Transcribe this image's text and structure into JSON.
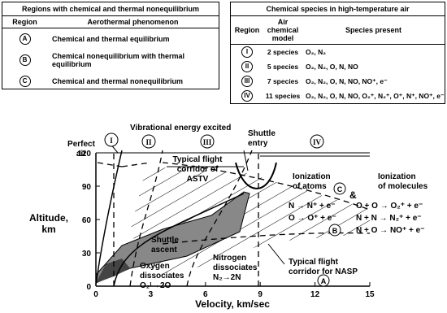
{
  "table_left": {
    "title": "Regions with chemical and thermal nonequilibrium",
    "headers": [
      "Region",
      "Aerothermal phenomenon"
    ],
    "rows": [
      [
        "A",
        "Chemical and thermal equilibrium"
      ],
      [
        "B",
        "Chemical nonequilibrium with thermal equilibrium"
      ],
      [
        "C",
        "Chemical and thermal nonequilibrium"
      ]
    ]
  },
  "table_right": {
    "title": "Chemical species in high-temperature air",
    "headers": [
      "Region",
      "Air chemical model",
      "Species present"
    ],
    "rows": [
      [
        "I",
        "2 species",
        "O₂, N₂"
      ],
      [
        "II",
        "5 species",
        "O₂, N₂, O, N, NO"
      ],
      [
        "III",
        "7 species",
        "O₂, N₂, O, N, NO, NO⁺, e⁻"
      ],
      [
        "IV",
        "11 species",
        "O₂, N₂, O, N, NO, O₂⁺, N₂⁺, O⁺, N⁺, NO⁺, e⁻"
      ]
    ]
  },
  "chart": {
    "xlabel": "Velocity, km/sec",
    "ylabel": [
      "Altitude,",
      "km"
    ],
    "xlim": [
      0,
      15
    ],
    "xticks": [
      0,
      3,
      6,
      9,
      12,
      15
    ],
    "ylim": [
      0,
      120
    ],
    "yticks": [
      0,
      30,
      60,
      90,
      120
    ],
    "regions": [
      "I",
      "II",
      "III",
      "IV"
    ],
    "zones": [
      "A",
      "B",
      "C"
    ],
    "amp": "&",
    "perfect_air": [
      "Perfect",
      "air"
    ],
    "vibrational": "Vibrational energy excited",
    "shuttle_entry": [
      "Shuttle",
      "entry"
    ],
    "astv": [
      "Typical flight",
      "corridor of",
      "ASTV"
    ],
    "ion_atoms": [
      "Ionization",
      "of atoms"
    ],
    "atom_reactions": [
      "N → N⁺ + e⁻",
      "O → O⁺ + e⁻"
    ],
    "ion_molecules": [
      "Ionization",
      "of molecules"
    ],
    "molecule_reactions": [
      "O + O → O₂⁺ + e⁻",
      "N + N → N₂⁺ + e⁻",
      "N + O → NO⁺ + e⁻"
    ],
    "shuttle_ascent": [
      "Shuttle",
      "ascent"
    ],
    "nitrogen": [
      "Nitrogen",
      "dissociates",
      "N₂→2N"
    ],
    "oxygen": [
      "Oxygen",
      "dissociates",
      "O₂ →2O"
    ],
    "nasp": [
      "Typical flight",
      "corridor for NASP"
    ]
  }
}
